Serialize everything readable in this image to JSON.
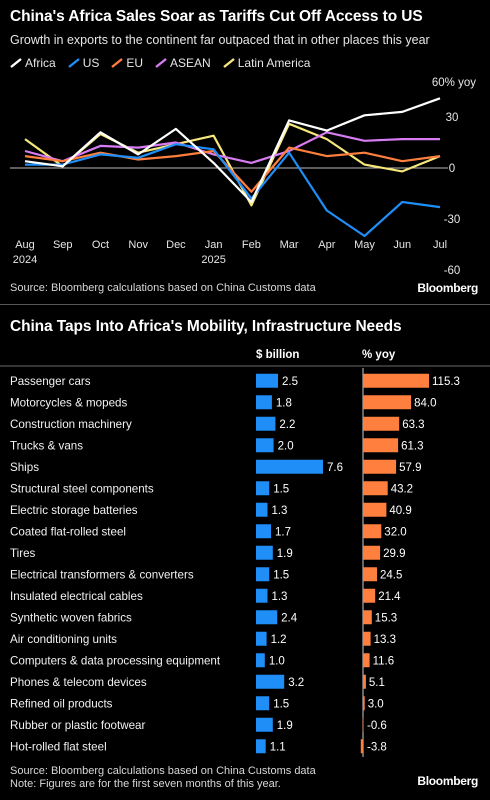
{
  "chart_data": [
    {
      "type": "line",
      "title": "China's Africa Sales Soar as Tariffs Cut Off Access to US",
      "subtitle": "Growth in exports to the continent far outpaced that in other places this year",
      "y_unit_label": "60% yoy",
      "ylim": [
        -60,
        60
      ],
      "yticks": [
        30,
        0,
        -30,
        -60
      ],
      "x": [
        "Aug\n2024",
        "Sep",
        "Oct",
        "Nov",
        "Dec",
        "Jan\n2025",
        "Feb",
        "Mar",
        "Apr",
        "May",
        "Jun",
        "Jul"
      ],
      "x_tick_top": [
        "Aug",
        "Sep",
        "Oct",
        "Nov",
        "Dec",
        "Jan",
        "Feb",
        "Mar",
        "Apr",
        "May",
        "Jun",
        "Jul"
      ],
      "x_tick_bottom": [
        "2024",
        "",
        "",
        "",
        "",
        "2025",
        "",
        "",
        "",
        "",
        "",
        ""
      ],
      "series": [
        {
          "name": "Africa",
          "color": "#ffffff",
          "values": [
            4,
            1,
            21,
            8,
            23,
            3,
            -20,
            28,
            22,
            31,
            33,
            41
          ]
        },
        {
          "name": "US",
          "color": "#1f8ef7",
          "values": [
            2,
            2,
            8,
            6,
            14,
            11,
            -18,
            9,
            -25,
            -40,
            -20,
            -23
          ]
        },
        {
          "name": "EU",
          "color": "#ff7f3e",
          "values": [
            7,
            4,
            9,
            5,
            7,
            10,
            -14,
            12,
            7,
            9,
            4,
            7
          ]
        },
        {
          "name": "ASEAN",
          "color": "#d77cf3",
          "values": [
            10,
            4,
            13,
            12,
            15,
            8,
            3,
            10,
            21,
            16,
            17,
            17
          ]
        },
        {
          "name": "Latin America",
          "color": "#f5e77b",
          "values": [
            17,
            1,
            20,
            9,
            14,
            19,
            -22,
            26,
            17,
            2,
            -2,
            7
          ]
        }
      ],
      "source": "Source: Bloomberg calculations based on China Customs data",
      "brand": "Bloomberg"
    },
    {
      "type": "bar",
      "title": "China Taps Into Africa's Mobility, Infrastructure Needs",
      "col1_header": "$ billion",
      "col2_header": "% yoy",
      "bar_colors": {
        "billion": "#1f8ef7",
        "yoy": "#ff7f3e"
      },
      "rows": [
        {
          "label": "Passenger cars",
          "billion": 2.5,
          "yoy": 115.3,
          "billion_label": "2.5",
          "yoy_label": "115.3"
        },
        {
          "label": "Motorcycles & mopeds",
          "billion": 1.8,
          "yoy": 84.0,
          "billion_label": "1.8",
          "yoy_label": "84.0"
        },
        {
          "label": "Construction machinery",
          "billion": 2.2,
          "yoy": 63.3,
          "billion_label": "2.2",
          "yoy_label": "63.3"
        },
        {
          "label": "Trucks & vans",
          "billion": 2.0,
          "yoy": 61.3,
          "billion_label": "2.0",
          "yoy_label": "61.3"
        },
        {
          "label": "Ships",
          "billion": 7.6,
          "yoy": 57.9,
          "billion_label": "7.6",
          "yoy_label": "57.9"
        },
        {
          "label": "Structural steel components",
          "billion": 1.5,
          "yoy": 43.2,
          "billion_label": "1.5",
          "yoy_label": "43.2"
        },
        {
          "label": "Electric storage batteries",
          "billion": 1.3,
          "yoy": 40.9,
          "billion_label": "1.3",
          "yoy_label": "40.9"
        },
        {
          "label": "Coated flat-rolled steel",
          "billion": 1.7,
          "yoy": 32.0,
          "billion_label": "1.7",
          "yoy_label": "32.0"
        },
        {
          "label": "Tires",
          "billion": 1.9,
          "yoy": 29.9,
          "billion_label": "1.9",
          "yoy_label": "29.9"
        },
        {
          "label": "Electrical transformers & converters",
          "billion": 1.5,
          "yoy": 24.5,
          "billion_label": "1.5",
          "yoy_label": "24.5"
        },
        {
          "label": "Insulated electrical cables",
          "billion": 1.3,
          "yoy": 21.4,
          "billion_label": "1.3",
          "yoy_label": "21.4"
        },
        {
          "label": "Synthetic woven fabrics",
          "billion": 2.4,
          "yoy": 15.3,
          "billion_label": "2.4",
          "yoy_label": "15.3"
        },
        {
          "label": "Air conditioning units",
          "billion": 1.2,
          "yoy": 13.3,
          "billion_label": "1.2",
          "yoy_label": "13.3"
        },
        {
          "label": "Computers & data processing equipment",
          "billion": 1.0,
          "yoy": 11.6,
          "billion_label": "1.0",
          "yoy_label": "11.6"
        },
        {
          "label": "Phones & telecom devices",
          "billion": 3.2,
          "yoy": 5.1,
          "billion_label": "3.2",
          "yoy_label": "5.1"
        },
        {
          "label": "Refined oil products",
          "billion": 1.5,
          "yoy": 3.0,
          "billion_label": "1.5",
          "yoy_label": "3.0"
        },
        {
          "label": "Rubber or plastic footwear",
          "billion": 1.9,
          "yoy": -0.6,
          "billion_label": "1.9",
          "yoy_label": "-0.6"
        },
        {
          "label": "Hot-rolled flat steel",
          "billion": 1.1,
          "yoy": -3.8,
          "billion_label": "1.1",
          "yoy_label": "-3.8"
        }
      ],
      "source": "Source: Bloomberg calculations based on China Customs data",
      "note": "Note: Figures are for the first seven months of this year.",
      "brand": "Bloomberg"
    }
  ]
}
